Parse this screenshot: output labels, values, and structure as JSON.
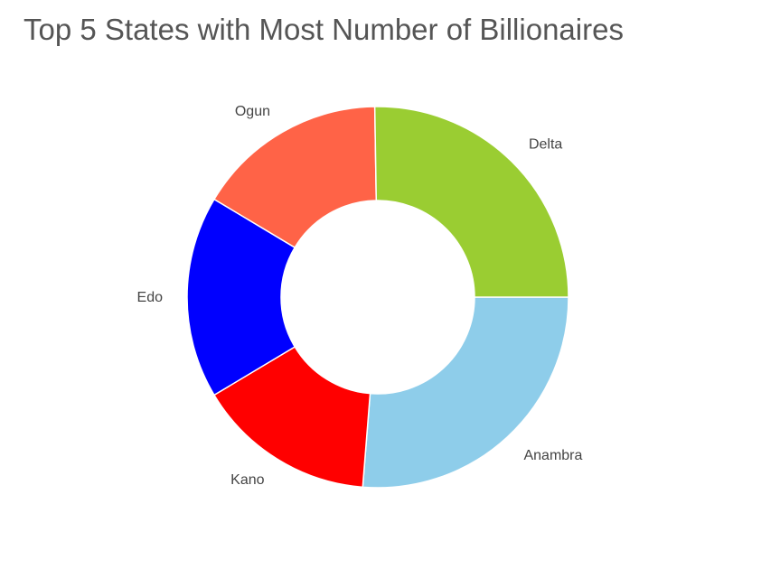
{
  "chart_data": {
    "type": "pie",
    "donut": true,
    "title": "Top 5 States with Most Number of Billionaires",
    "categories": [
      "Anambra",
      "Kano",
      "Edo",
      "Ogun",
      "Delta"
    ],
    "values": [
      26,
      15,
      17,
      16,
      25
    ],
    "colors": [
      "#8ecdea",
      "#ff0000",
      "#0000ff",
      "#ff6347",
      "#9acd32"
    ],
    "legend": "none"
  }
}
